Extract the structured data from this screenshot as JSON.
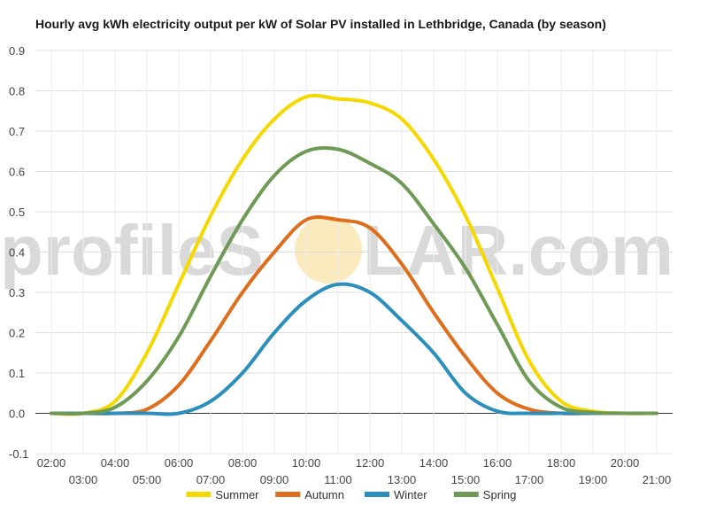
{
  "watermark": {
    "text_left": "profileS",
    "text_right": "LAR.com",
    "sun_color": "#f9e6b3"
  },
  "chart_data": {
    "type": "line",
    "title": "Hourly avg kWh electricity output per kW of Solar PV installed in Lethbridge, Canada (by season)",
    "xlabel": "",
    "ylabel": "",
    "ylim": [
      -0.1,
      0.9
    ],
    "y_ticks": [
      -0.1,
      0.0,
      0.1,
      0.2,
      0.3,
      0.4,
      0.5,
      0.6,
      0.7,
      0.8,
      0.9
    ],
    "y_tick_labels": [
      "-0.1",
      "0.0",
      "0.1",
      "0.2",
      "0.3",
      "0.4",
      "0.5",
      "0.6",
      "0.7",
      "0.8",
      "0.9"
    ],
    "xlim": [
      1.5,
      21.5
    ],
    "x_ticks_top": [
      "02:00",
      "04:00",
      "06:00",
      "08:00",
      "10:00",
      "12:00",
      "14:00",
      "16:00",
      "18:00",
      "20:00"
    ],
    "x_ticks_bottom": [
      "03:00",
      "05:00",
      "07:00",
      "09:00",
      "11:00",
      "13:00",
      "15:00",
      "17:00",
      "19:00",
      "21:00"
    ],
    "grid": true,
    "legend_position": "bottom",
    "x": [
      2,
      3,
      4,
      5,
      6,
      7,
      8,
      9,
      10,
      11,
      12,
      13,
      14,
      15,
      16,
      17,
      18,
      19,
      20,
      21
    ],
    "series": [
      {
        "name": "Summer",
        "color": "#f5d800",
        "values": [
          0.0,
          0.0,
          0.03,
          0.15,
          0.32,
          0.49,
          0.63,
          0.73,
          0.785,
          0.78,
          0.77,
          0.73,
          0.63,
          0.49,
          0.31,
          0.13,
          0.03,
          0.005,
          0.0,
          0.0
        ]
      },
      {
        "name": "Autumn",
        "color": "#e06d1b",
        "values": [
          0.0,
          0.0,
          0.0,
          0.01,
          0.07,
          0.18,
          0.3,
          0.4,
          0.48,
          0.48,
          0.46,
          0.37,
          0.25,
          0.14,
          0.05,
          0.01,
          0.0,
          0.0,
          0.0,
          0.0
        ]
      },
      {
        "name": "Winter",
        "color": "#2a8fbd",
        "values": [
          0.0,
          0.0,
          0.0,
          0.0,
          0.0,
          0.03,
          0.1,
          0.2,
          0.28,
          0.32,
          0.3,
          0.23,
          0.15,
          0.05,
          0.005,
          0.0,
          0.0,
          0.0,
          0.0,
          0.0
        ]
      },
      {
        "name": "Spring",
        "color": "#6e9a55",
        "values": [
          0.0,
          0.0,
          0.015,
          0.08,
          0.19,
          0.34,
          0.48,
          0.59,
          0.65,
          0.655,
          0.62,
          0.57,
          0.47,
          0.36,
          0.22,
          0.08,
          0.015,
          0.002,
          0.0,
          0.0
        ]
      }
    ]
  }
}
